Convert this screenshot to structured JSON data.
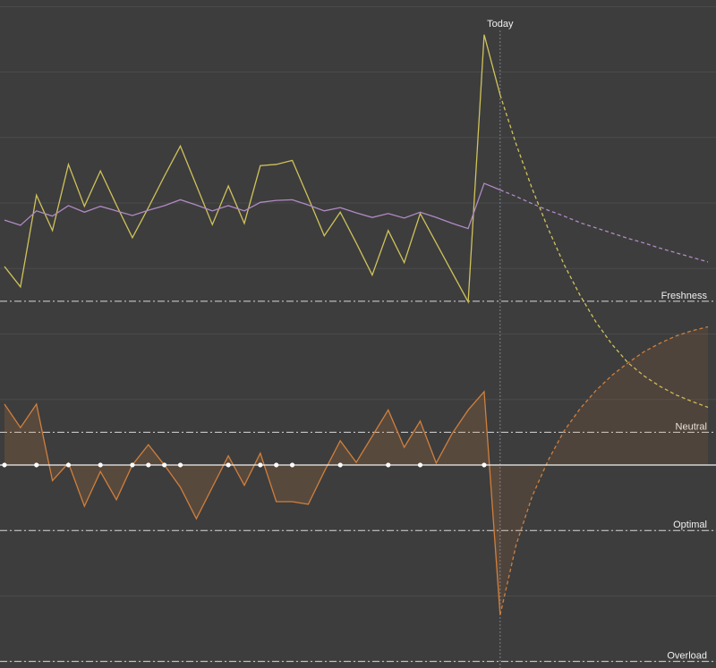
{
  "chart_data": {
    "type": "line",
    "xlim": [
      -0.28,
      44.5
    ],
    "ylim": [
      -31,
      71
    ],
    "yticks": [
      -30,
      -20,
      -10,
      0,
      10,
      20,
      30,
      40,
      50,
      60,
      70
    ],
    "grid": true,
    "today": {
      "label": "Today",
      "x": 31
    },
    "reference_lines": [
      {
        "label": "Freshness",
        "value": 25
      },
      {
        "label": "Neutral",
        "value": 5
      },
      {
        "label": "Optimal",
        "value": -10
      },
      {
        "label": "Overload",
        "value": -30
      }
    ],
    "activity_days": [
      0,
      2,
      4,
      6,
      8,
      9,
      10,
      11,
      14,
      16,
      17,
      18,
      21,
      24,
      26,
      30
    ],
    "series": [
      {
        "color": "#cfc25a",
        "style": "solid",
        "fill": false,
        "values": [
          30.3,
          27.2,
          41.2,
          35.8,
          45.9,
          39.5,
          44.9,
          39.7,
          34.7,
          39.3,
          44.1,
          48.7,
          42.7,
          36.7,
          42.6,
          36.9,
          45.7,
          45.9,
          46.5,
          40.8,
          35.0,
          38.6,
          33.9,
          29.0,
          35.8,
          30.9,
          38.4,
          33.9,
          29.4,
          24.9,
          65.7,
          56.5,
          null,
          null,
          null,
          null,
          null,
          null,
          null,
          null,
          null,
          null,
          null,
          null,
          null
        ]
      },
      {
        "color": "#cfc25a",
        "style": "dashed",
        "fill": false,
        "values": [
          null,
          null,
          null,
          null,
          null,
          null,
          null,
          null,
          null,
          null,
          null,
          null,
          null,
          null,
          null,
          null,
          null,
          null,
          null,
          null,
          null,
          null,
          null,
          null,
          null,
          null,
          null,
          null,
          null,
          null,
          null,
          56.5,
          49.0,
          42.2,
          36.1,
          30.6,
          25.9,
          21.8,
          18.4,
          15.6,
          13.6,
          12.0,
          10.7,
          9.7,
          8.8
        ]
      },
      {
        "color": "#b08ac4",
        "style": "solid",
        "fill": false,
        "values": [
          37.4,
          36.6,
          38.8,
          38.0,
          39.6,
          38.6,
          39.5,
          38.8,
          38.1,
          38.9,
          39.6,
          40.5,
          39.7,
          38.8,
          39.6,
          38.8,
          40.1,
          40.4,
          40.5,
          39.7,
          38.8,
          39.3,
          38.5,
          37.8,
          38.4,
          37.7,
          38.6,
          37.8,
          36.9,
          36.1,
          43.0,
          42.0,
          null,
          null,
          null,
          null,
          null,
          null,
          null,
          null,
          null,
          null,
          null,
          null,
          null
        ]
      },
      {
        "color": "#b08ac4",
        "style": "dashed",
        "fill": false,
        "values": [
          null,
          null,
          null,
          null,
          null,
          null,
          null,
          null,
          null,
          null,
          null,
          null,
          null,
          null,
          null,
          null,
          null,
          null,
          null,
          null,
          null,
          null,
          null,
          null,
          null,
          null,
          null,
          null,
          null,
          null,
          null,
          42.0,
          41.0,
          39.9,
          38.9,
          38.0,
          37.0,
          36.2,
          35.4,
          34.6,
          33.9,
          33.1,
          32.4,
          31.7,
          31.0
        ]
      },
      {
        "color": "#d07f3c",
        "style": "solid",
        "fill": true,
        "values": [
          9.3,
          5.7,
          9.3,
          -2.4,
          0.3,
          -6.3,
          -1.0,
          -5.3,
          0,
          3.1,
          0,
          -3.4,
          -8.2,
          -3.4,
          1.4,
          -3.1,
          1.8,
          -5.6,
          -5.6,
          -6.0,
          -1.0,
          3.7,
          0.4,
          4.4,
          8.4,
          2.7,
          6.7,
          0.3,
          4.8,
          8.4,
          11.2,
          -22.9,
          null,
          null,
          null,
          null,
          null,
          null,
          null,
          null,
          null,
          null,
          null,
          null,
          null
        ]
      },
      {
        "color": "#d07f3c",
        "style": "dashed",
        "fill": true,
        "values": [
          null,
          null,
          null,
          null,
          null,
          null,
          null,
          null,
          null,
          null,
          null,
          null,
          null,
          null,
          null,
          null,
          null,
          null,
          null,
          null,
          null,
          null,
          null,
          null,
          null,
          null,
          null,
          null,
          null,
          null,
          null,
          -22.9,
          -12.2,
          -4.8,
          0.7,
          5.2,
          8.6,
          11.4,
          13.7,
          15.6,
          17.3,
          18.6,
          19.7,
          20.5,
          21.1
        ]
      }
    ]
  }
}
